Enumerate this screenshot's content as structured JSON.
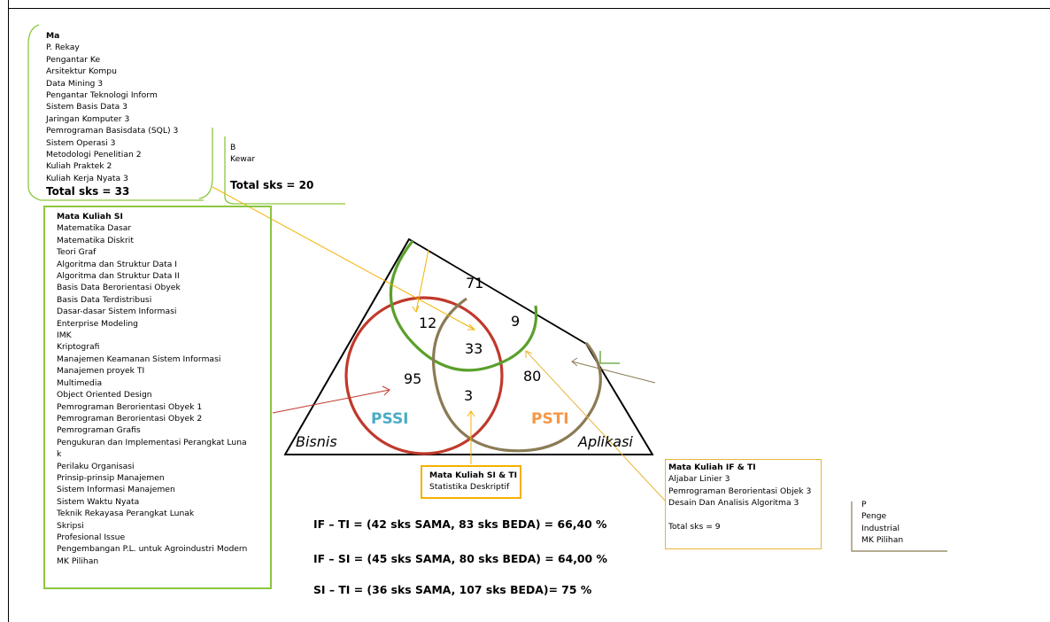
{
  "top_list": {
    "title": "Ma",
    "items": [
      "P. Rekay",
      "Pengantar Ke",
      "Arsitektur Kompu",
      "Data Mining 3",
      "Pengantar Teknologi Inform",
      "Sistem  Basis Data 3",
      "Jaringan Komputer 3",
      "Pemrograman Basisdata (SQL) 3",
      "Sistem Operasi 3",
      "Metodologi Penelitian 2",
      "Kuliah Praktek 2",
      "Kuliah Kerja Nyata 3"
    ],
    "total": "Total sks = 33"
  },
  "bisnis_list": {
    "items": [
      "B",
      "Kewar"
    ],
    "total": "Total sks = 20"
  },
  "si_list": {
    "title": "Mata Kuliah SI",
    "items": [
      "Matematika Dasar",
      "Matematika Diskrit",
      "Teori Graf",
      "Algoritma dan Struktur Data I",
      "Algoritma dan Struktur Data II",
      "Basis Data Berorientasi Obyek",
      "Basis Data Terdistribusi",
      "Dasar-dasar Sistem Informasi",
      "Enterprise Modeling",
      "IMK",
      "Kriptografi",
      "Manajemen Keamanan Sistem Informasi",
      "Manajemen proyek TI",
      "Multimedia",
      "Object Oriented Design",
      "Pemrograman Berorientasi Obyek 1",
      "Pemrograman Berorientasi Obyek 2",
      "Pemrograman Grafis",
      "Pengukuran dan Implementasi Perangkat Luna",
      "k",
      "Perilaku Organisasi",
      "Prinsip-prinsip Manajemen",
      "Sistem Informasi Manajemen",
      "Sistem Waktu Nyata",
      "Teknik Rekayasa Perangkat Lunak",
      "Skripsi",
      "Profesional Issue",
      "Pengembangan P.L. untuk Agroindustri Modern",
      "MK Pilihan"
    ]
  },
  "si_ti_box": {
    "title": "Mata Kuliah SI & TI",
    "items": [
      "Statistika Deskriptif"
    ]
  },
  "if_ti_box": {
    "title": "Mata Kuliah IF & TI",
    "items": [
      "Aljabar Linier 3",
      "Pemrograman Berorientasi Objek 3",
      "Desain Dan Analisis Algoritma 3"
    ],
    "total": "Total sks = 9"
  },
  "right_list": {
    "items": [
      "P",
      "Penge",
      "Industrial",
      "MK Pilihan"
    ]
  },
  "venn": {
    "numbers": {
      "top": "71",
      "green_red": "12",
      "green_brown": "9",
      "center": "33",
      "red_only": "95",
      "red_brown": "3",
      "brown_only": "80"
    },
    "label_pssi": "PSSI",
    "label_psti": "PSTI",
    "corner_left": "Bisnis",
    "corner_right": "Aplikasi",
    "colors": {
      "pssi_circle": "#c0392b",
      "green_arc": "#5aa02c",
      "brown_arc": "#8b7b55",
      "pssi_text": "#4bacc6",
      "psti_text": "#f79646",
      "green_box": "#8cc63f",
      "gold_box": "#f3b100"
    }
  },
  "percentages": {
    "if_ti": "IF – TI = (42 sks SAMA, 83 sks BEDA) = 66,40 %",
    "if_si": "IF – SI = (45 sks SAMA,  80 sks BEDA) = 64,00 %",
    "si_ti": "SI  –  TI = (36 sks SAMA, 107 sks BEDA)= 75 %"
  }
}
